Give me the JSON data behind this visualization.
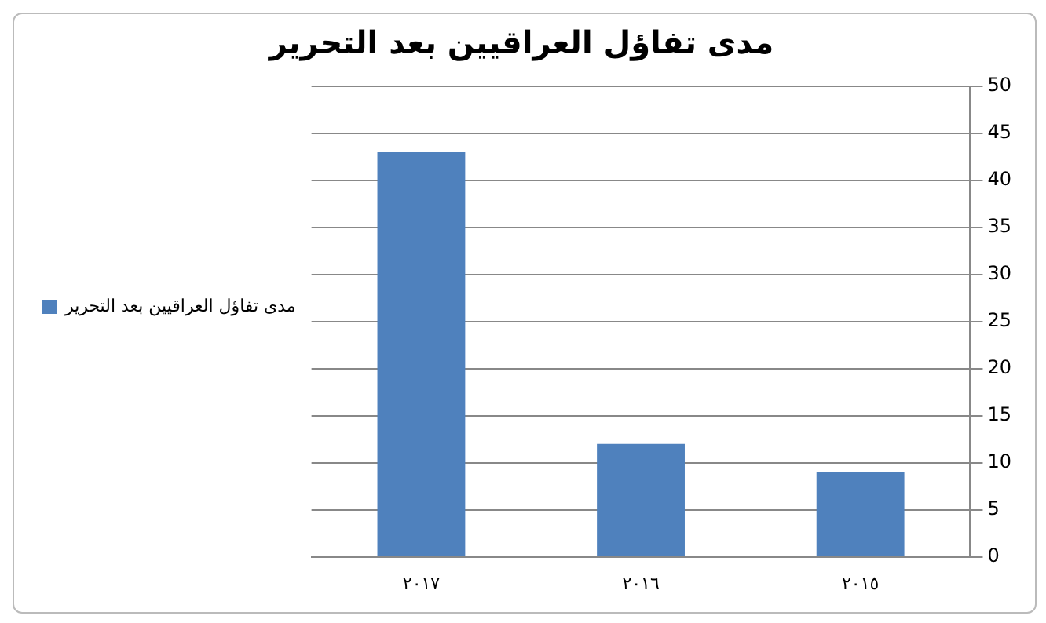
{
  "chart_data": {
    "type": "bar",
    "title": "مدى تفاؤل العراقيين بعد التحرير",
    "categories": [
      "٢٠١٧",
      "٢٠١٦",
      "٢٠١٥"
    ],
    "series": [
      {
        "name": "مدى تفاؤل العراقيين بعد التحرير",
        "color": "#4f81bd",
        "values": [
          43,
          12,
          9
        ]
      }
    ],
    "ylim": [
      0,
      50
    ],
    "yticks": [
      0,
      5,
      10,
      15,
      20,
      25,
      30,
      35,
      40,
      45,
      50
    ],
    "grid": "y",
    "legend": "left"
  }
}
